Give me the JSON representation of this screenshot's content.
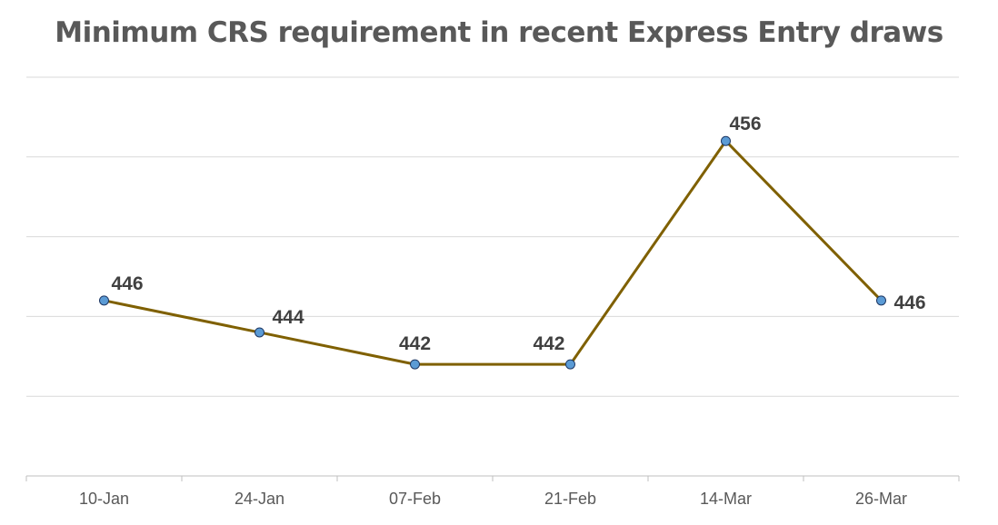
{
  "chart_data": {
    "type": "line",
    "title": "Minimum CRS requirement in recent Express Entry draws",
    "categories": [
      "10-Jan",
      "24-Jan",
      "07-Feb",
      "21-Feb",
      "14-Mar",
      "26-Mar"
    ],
    "values": [
      446,
      444,
      442,
      442,
      456,
      446
    ],
    "data_labels": [
      "446",
      "444",
      "442",
      "442",
      "456",
      "446"
    ],
    "ylim": [
      435,
      460
    ],
    "ytick_step": 5,
    "y_tick_labels_visible": false,
    "grid": true,
    "legend": "none",
    "colors": {
      "line": "#7f6000",
      "marker_fill": "#5b9bd5",
      "marker_edge": "#1f3864",
      "grid": "#d9d9d9",
      "title": "#595959",
      "label": "#404040",
      "axis_text": "#595959"
    }
  }
}
